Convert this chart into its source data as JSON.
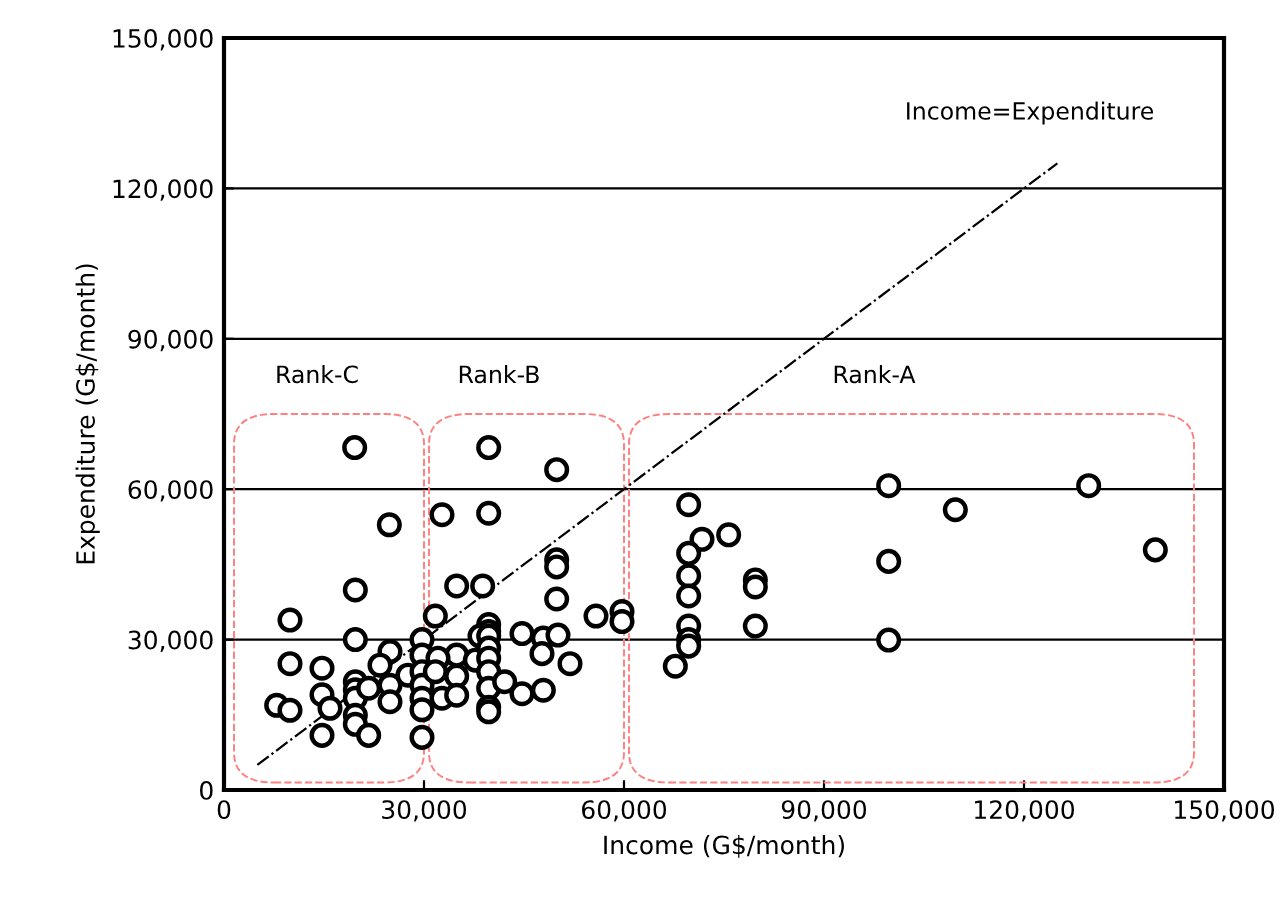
{
  "chart_data": {
    "type": "scatter",
    "xlabel": "Income (G$/month)",
    "ylabel": "Expenditure (G$/month)",
    "xlim": [
      0,
      150000
    ],
    "ylim": [
      0,
      150000
    ],
    "xticks": [
      0,
      {
        "value": 30000,
        "label": "30,000"
      },
      {
        "value": 60000,
        "label": "60,000"
      },
      {
        "value": 90000,
        "label": "90,000"
      },
      {
        "value": 120000,
        "label": "120,000"
      },
      {
        "value": 150000,
        "label": "150,000"
      }
    ],
    "yticks": [
      0,
      {
        "value": 30000,
        "label": "30,000"
      },
      {
        "value": 60000,
        "label": "60,000"
      },
      {
        "value": 90000,
        "label": "90,000"
      },
      {
        "value": 120000,
        "label": "120,000"
      },
      {
        "value": 150000,
        "label": "150,000"
      }
    ],
    "grid": "y",
    "marker": "circle",
    "series": [
      {
        "color": "#000000",
        "x": [
          19600,
          39700,
          49900,
          24800,
          32700,
          39700,
          49900,
          49900,
          49900,
          19700,
          34900,
          38800,
          9900,
          31700,
          39700,
          39700,
          38400,
          39700,
          55800,
          59700,
          59700,
          44700,
          47900,
          50100,
          47700,
          51900,
          19700,
          29700,
          29700,
          24900,
          23400,
          34900,
          32100,
          37700,
          39700,
          39700,
          39700,
          39700,
          39700,
          39700,
          42100,
          44700,
          47900,
          9900,
          14700,
          14700,
          15900,
          7900,
          9900,
          14700,
          19700,
          19700,
          19700,
          19700,
          19700,
          21700,
          21700,
          24900,
          24900,
          27600,
          29700,
          29700,
          29700,
          29700,
          29700,
          31700,
          32700,
          34900,
          34900,
          69700,
          71700,
          75700,
          69700,
          69700,
          69700,
          69700,
          69700,
          69700,
          67700,
          79700,
          79700,
          79700,
          99700,
          99700,
          99700,
          109700,
          129700,
          139700
        ],
        "values": [
          68300,
          68300,
          63900,
          52900,
          54900,
          55200,
          45900,
          44500,
          38100,
          39900,
          40700,
          40700,
          33900,
          34700,
          33000,
          31600,
          30700,
          30700,
          34700,
          35600,
          33600,
          31200,
          30300,
          30900,
          27200,
          25200,
          30000,
          30000,
          26900,
          27600,
          24900,
          26900,
          26300,
          25900,
          28300,
          26300,
          23600,
          20300,
          16500,
          15600,
          21600,
          19200,
          19900,
          25200,
          24300,
          19000,
          16300,
          16900,
          15900,
          10900,
          21600,
          20000,
          18300,
          14900,
          13100,
          20300,
          10900,
          20900,
          17600,
          22900,
          23600,
          20900,
          18300,
          16000,
          10500,
          23600,
          18300,
          22700,
          18900,
          56900,
          50000,
          50900,
          47200,
          42700,
          38700,
          32700,
          30000,
          28700,
          24700,
          41900,
          40500,
          32700,
          60700,
          45600,
          29900,
          55900,
          60700,
          47900
        ]
      },
      {
        "type": "line",
        "name": "Income=Expenditure",
        "color": "#000000",
        "line_style": "dashdot",
        "marker": "none",
        "x": [
          5000,
          125000
        ],
        "values": [
          5000,
          125000
        ]
      }
    ],
    "annotations": [
      "Rank-C",
      "Rank-B",
      "Rank-A"
    ]
  }
}
